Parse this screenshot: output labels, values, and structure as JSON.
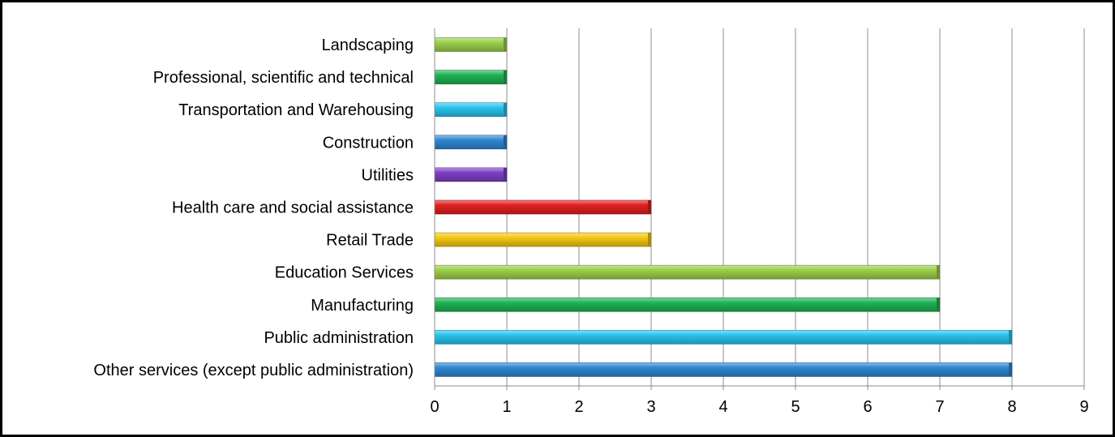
{
  "chart_data": {
    "type": "bar",
    "orientation": "horizontal",
    "title": "",
    "xlabel": "",
    "ylabel": "",
    "categories": [
      "Landscaping",
      "Professional, scientific and technical",
      "Transportation and Warehousing",
      "Construction",
      "Utilities",
      "Health care and social assistance",
      "Retail Trade",
      "Education Services",
      "Manufacturing",
      "Public administration",
      "Other services (except public administration)"
    ],
    "values": [
      1,
      1,
      1,
      1,
      1,
      3,
      3,
      7,
      7,
      8,
      8
    ],
    "bar_colors": [
      "#9bcf4a",
      "#1fb254",
      "#27c3ee",
      "#2f86d2",
      "#7d3ec4",
      "#e02020",
      "#f5c813",
      "#9bcf4a",
      "#1fb254",
      "#27c3ee",
      "#2f86d2"
    ],
    "xlim": [
      0,
      9
    ],
    "xticks": [
      "0",
      "1",
      "2",
      "3",
      "4",
      "5",
      "6",
      "7",
      "8",
      "9"
    ],
    "grid": true,
    "legend": "none"
  }
}
